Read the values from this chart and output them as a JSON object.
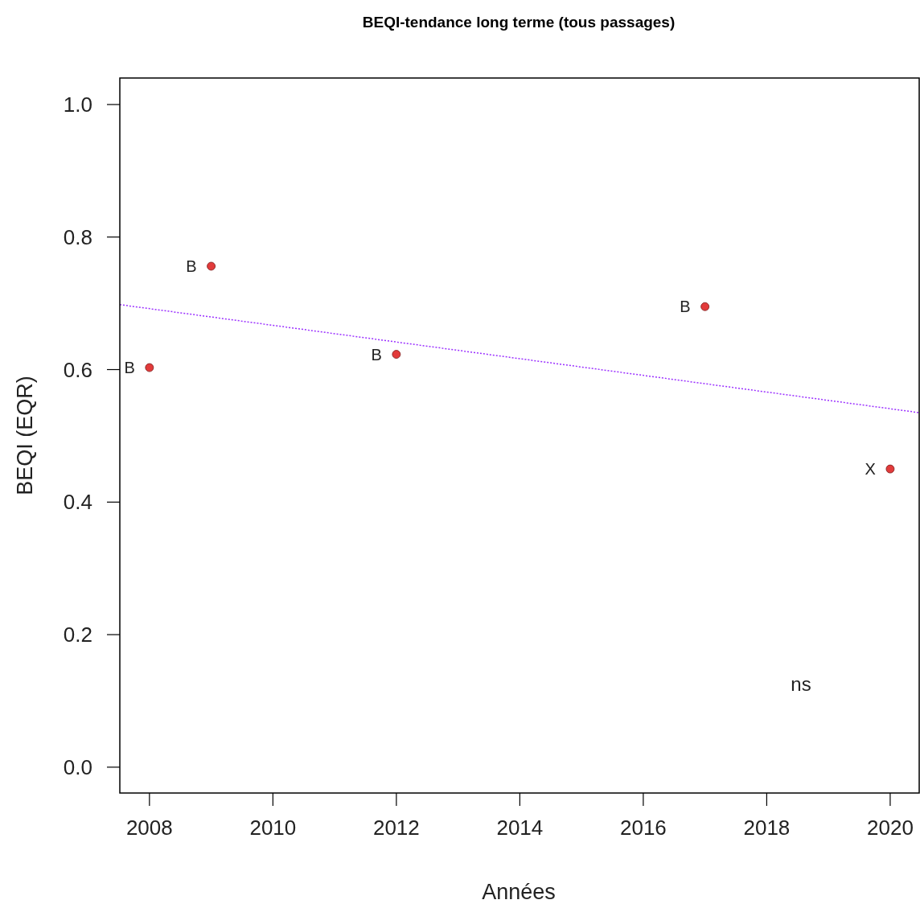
{
  "chart_data": {
    "type": "scatter",
    "title": "BEQI-tendance long terme (tous passages)",
    "xlabel": "Années",
    "ylabel": "BEQI (EQR)",
    "x": [
      2008,
      2009,
      2012,
      2017,
      2020
    ],
    "series": [
      {
        "color": "#e23b3b",
        "values": [
          0.603,
          0.756,
          0.623,
          0.695,
          0.45
        ],
        "marker": "circle"
      },
      {
        "type": "line",
        "color": "#9b30ff",
        "x": [
          2007.52,
          2020.47
        ],
        "values": [
          0.698,
          0.535
        ],
        "line_style": "dotted"
      }
    ],
    "xlim": [
      2007.52,
      2020.47
    ],
    "xticks": [
      2008,
      2010,
      2012,
      2014,
      2016,
      2018,
      2020
    ],
    "ylim": [
      -0.039,
      1.04
    ],
    "yticks": [
      {
        "value": 0,
        "label": "0.0"
      },
      {
        "value": 0.2,
        "label": "0.2"
      },
      {
        "value": 0.4,
        "label": "0.4"
      },
      {
        "value": 0.6,
        "label": "0.6"
      },
      {
        "value": 0.8,
        "label": "0.8"
      },
      {
        "value": 1,
        "label": "1.0"
      }
    ],
    "grid": false,
    "annotations": [
      {
        "text": "B",
        "x": 2008,
        "y": 0.603
      },
      {
        "text": "B",
        "x": 2009,
        "y": 0.756
      },
      {
        "text": "B",
        "x": 2012,
        "y": 0.623
      },
      {
        "text": "B",
        "x": 2017,
        "y": 0.695
      },
      {
        "text": "X",
        "x": 2020,
        "y": 0.45
      },
      "ns"
    ]
  }
}
